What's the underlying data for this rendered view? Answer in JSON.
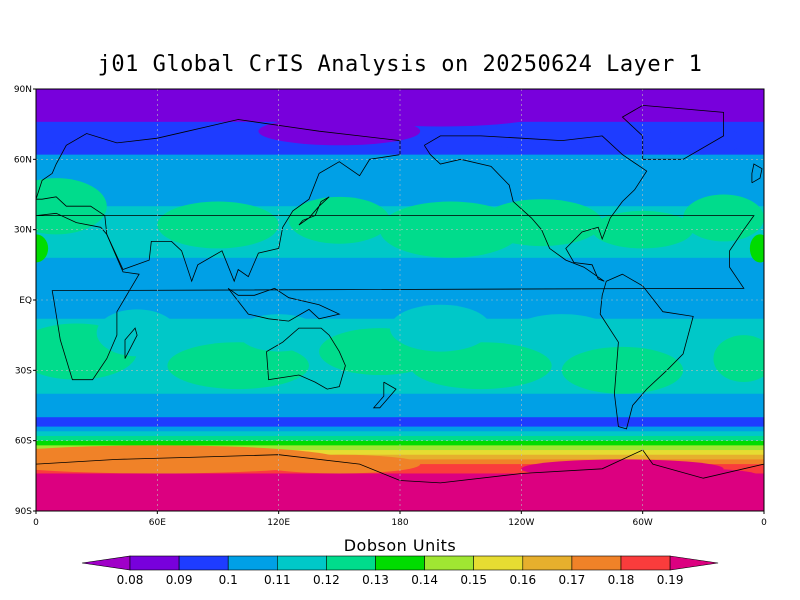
{
  "chart_data": {
    "type": "heatmap",
    "title": "j01 Global CrIS Analysis on 20250624 Layer 1",
    "colorbar_title": "Dobson Units",
    "x_tick_labels": [
      "0",
      "60E",
      "120E",
      "180",
      "120W",
      "60W",
      "0"
    ],
    "y_tick_labels": [
      "90N",
      "60N",
      "30N",
      "EQ",
      "30S",
      "60S",
      "90S"
    ],
    "xlim": [
      0,
      360
    ],
    "ylim": [
      -90,
      90
    ],
    "grid": true,
    "colorbar_levels": [
      "0.08",
      "0.09",
      "0.1",
      "0.11",
      "0.12",
      "0.13",
      "0.14",
      "0.15",
      "0.16",
      "0.17",
      "0.18",
      "0.19"
    ],
    "colorbar_colors": [
      "#a000c8",
      "#7800dc",
      "#1e3cff",
      "#00a0e6",
      "#00c8c8",
      "#00dc8c",
      "#00dc00",
      "#a0e632",
      "#e6dc32",
      "#e6af2d",
      "#f08228",
      "#fa3c3c",
      "#dc0080"
    ],
    "latitude_bands": [
      {
        "from": 90,
        "to": 76,
        "value": 0.08
      },
      {
        "from": 76,
        "to": 62,
        "value": 0.09
      },
      {
        "from": 62,
        "to": 40,
        "value": 0.1
      },
      {
        "from": 40,
        "to": 18,
        "value": 0.11
      },
      {
        "from": 18,
        "to": -8,
        "value": 0.1
      },
      {
        "from": -8,
        "to": -40,
        "value": 0.11
      },
      {
        "from": -40,
        "to": -50,
        "value": 0.1
      },
      {
        "from": -50,
        "to": -54,
        "value": 0.09
      },
      {
        "from": -54,
        "to": -56,
        "value": 0.1
      },
      {
        "from": -56,
        "to": -58,
        "value": 0.11
      },
      {
        "from": -58,
        "to": -60,
        "value": 0.12
      },
      {
        "from": -60,
        "to": -62,
        "value": 0.13
      },
      {
        "from": -62,
        "to": -64,
        "value": 0.14
      },
      {
        "from": -64,
        "to": -66,
        "value": 0.15
      },
      {
        "from": -66,
        "to": -68,
        "value": 0.16
      },
      {
        "from": -68,
        "to": -70,
        "value": 0.17
      },
      {
        "from": -70,
        "to": -74,
        "value": 0.18
      },
      {
        "from": -74,
        "to": -90,
        "value": 0.19
      }
    ]
  }
}
